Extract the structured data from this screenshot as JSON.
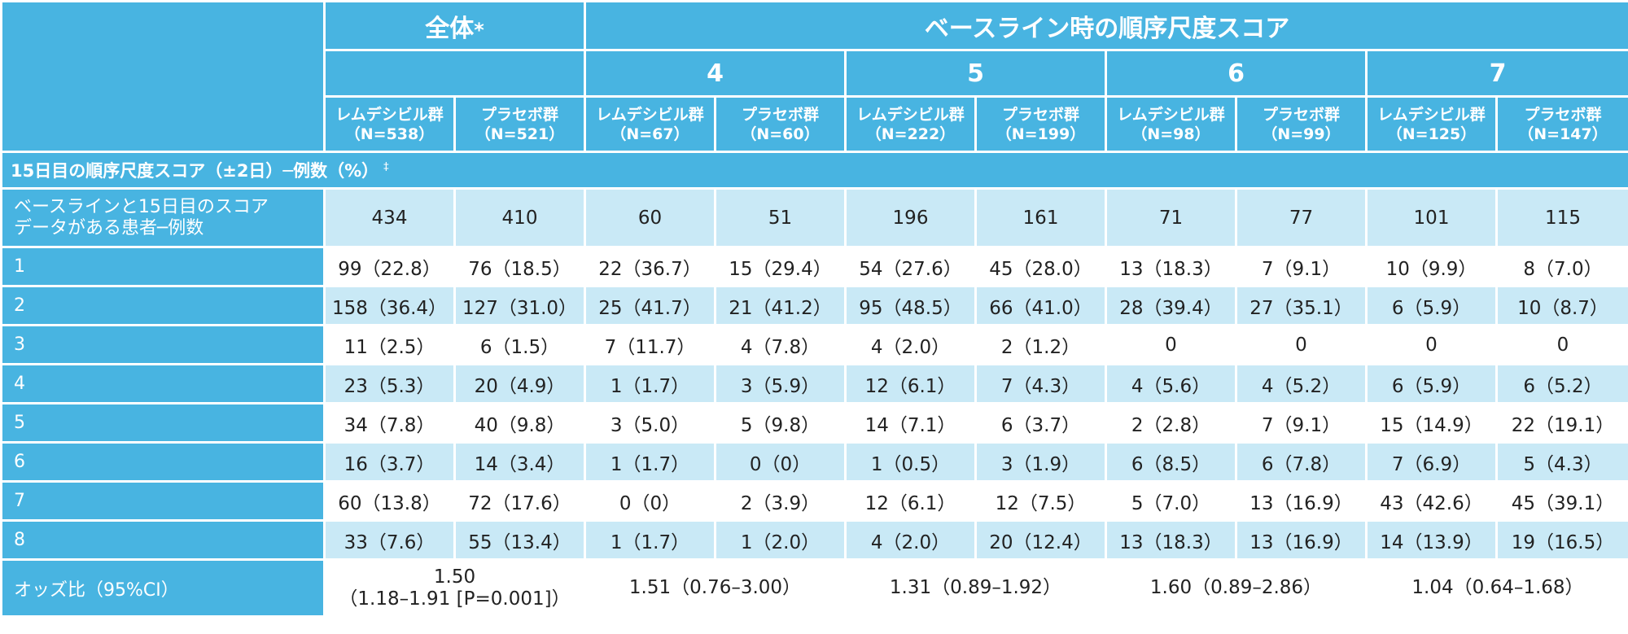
{
  "header": {
    "overall": "全体",
    "overall_mark": "*",
    "baseline": "ベースライン時の順序尺度スコア",
    "groups": [
      "4",
      "5",
      "6",
      "7"
    ],
    "arms": [
      {
        "name": "レムデシビル群",
        "n": "（N=538）"
      },
      {
        "name": "プラセボ群",
        "n": "（N=521）"
      },
      {
        "name": "レムデシビル群",
        "n": "（N=67）"
      },
      {
        "name": "プラセボ群",
        "n": "（N=60）"
      },
      {
        "name": "レムデシビル群",
        "n": "（N=222）"
      },
      {
        "name": "プラセボ群",
        "n": "（N=199）"
      },
      {
        "name": "レムデシビル群",
        "n": "（N=98）"
      },
      {
        "name": "プラセボ群",
        "n": "（N=99）"
      },
      {
        "name": "レムデシビル群",
        "n": "（N=125）"
      },
      {
        "name": "プラセボ群",
        "n": "（N=147）"
      }
    ]
  },
  "section": {
    "title": "15日目の順序尺度スコア（±2日）─例数（%）",
    "mark": "‡"
  },
  "rows": [
    {
      "label": "ベースラインと15日目のスコアデータがある患者─例数",
      "values": [
        "434",
        "410",
        "60",
        "51",
        "196",
        "161",
        "71",
        "77",
        "101",
        "115"
      ]
    },
    {
      "label": "1",
      "values": [
        "99（22.8）",
        "76（18.5）",
        "22（36.7）",
        "15（29.4）",
        "54（27.6）",
        "45（28.0）",
        "13（18.3）",
        "7（9.1）",
        "10（9.9）",
        "8（7.0）"
      ]
    },
    {
      "label": "2",
      "values": [
        "158（36.4）",
        "127（31.0）",
        "25（41.7）",
        "21（41.2）",
        "95（48.5）",
        "66（41.0）",
        "28（39.4）",
        "27（35.1）",
        "6（5.9）",
        "10（8.7）"
      ]
    },
    {
      "label": "3",
      "values": [
        "11（2.5）",
        "6（1.5）",
        "7（11.7）",
        "4（7.8）",
        "4（2.0）",
        "2（1.2）",
        "0",
        "0",
        "0",
        "0"
      ]
    },
    {
      "label": "4",
      "values": [
        "23（5.3）",
        "20（4.9）",
        "1（1.7）",
        "3（5.9）",
        "12（6.1）",
        "7（4.3）",
        "4（5.6）",
        "4（5.2）",
        "6（5.9）",
        "6（5.2）"
      ]
    },
    {
      "label": "5",
      "values": [
        "34（7.8）",
        "40（9.8）",
        "3（5.0）",
        "5（9.8）",
        "14（7.1）",
        "6（3.7）",
        "2（2.8）",
        "7（9.1）",
        "15（14.9）",
        "22（19.1）"
      ]
    },
    {
      "label": "6",
      "values": [
        "16（3.7）",
        "14（3.4）",
        "1（1.7）",
        "0（0）",
        "1（0.5）",
        "3（1.9）",
        "6（8.5）",
        "6（7.8）",
        "7（6.9）",
        "5（4.3）"
      ]
    },
    {
      "label": "7",
      "values": [
        "60（13.8）",
        "72（17.6）",
        "0（0）",
        "2（3.9）",
        "12（6.1）",
        "12（7.5）",
        "5（7.0）",
        "13（16.9）",
        "43（42.6）",
        "45（39.1）"
      ]
    },
    {
      "label": "8",
      "values": [
        "33（7.6）",
        "55（13.4）",
        "1（1.7）",
        "1（2.0）",
        "4（2.0）",
        "20（12.4）",
        "13（18.3）",
        "13（16.9）",
        "14（13.9）",
        "19（16.5）"
      ]
    }
  ],
  "odds": {
    "label": "オッズ比（95%CI）",
    "overall_line1": "1.50",
    "overall_line2": "（1.18–1.91 [P=0.001]）",
    "groups": [
      "1.51（0.76–3.00）",
      "1.31（0.89–1.92）",
      "1.60（0.89–2.86）",
      "1.04（0.64–1.68）"
    ]
  },
  "colors": {
    "header_bg": "#48b4e1",
    "row_light": "#c9e9f6",
    "row_white": "#ffffff",
    "text": "#222222"
  }
}
